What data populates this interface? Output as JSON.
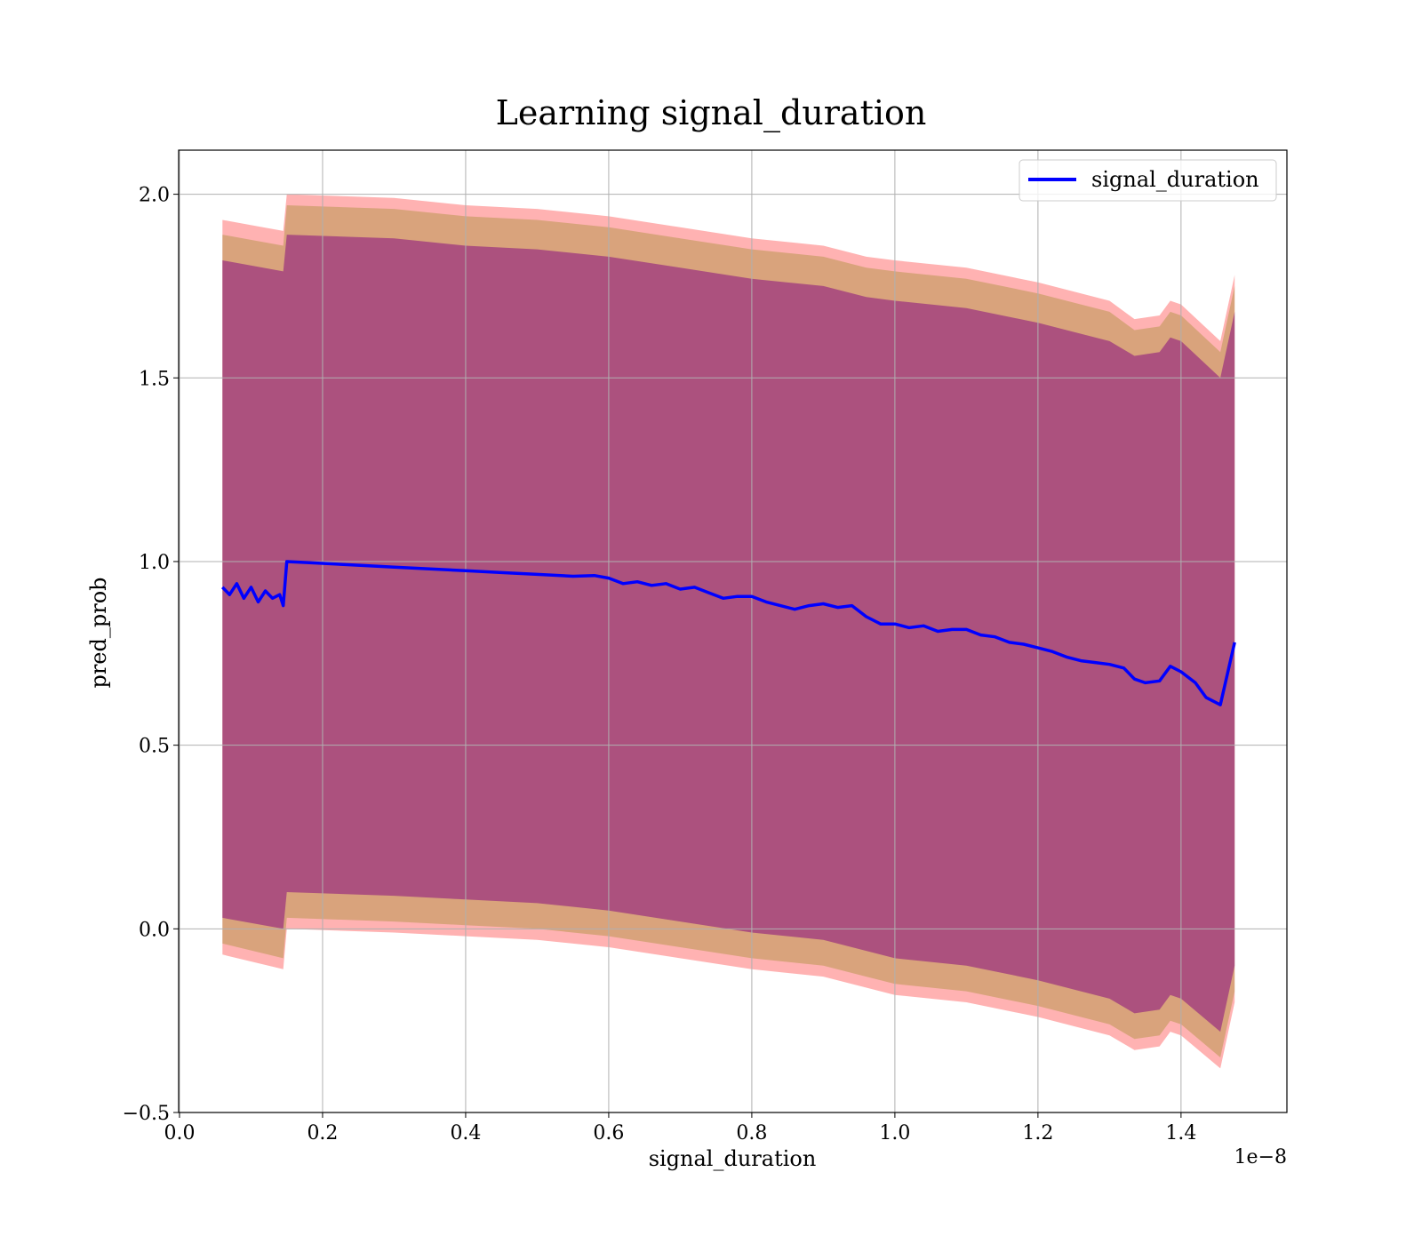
{
  "chart_data": {
    "type": "line",
    "title": "Learning signal_duration",
    "xlabel": "signal_duration",
    "ylabel": "pred_prob",
    "x_offset_label": "1e−8",
    "xlim": [
      -0.0012,
      1.548
    ],
    "ylim": [
      -0.5,
      2.12
    ],
    "x_ticks": [
      0.0,
      0.2,
      0.4,
      0.6,
      0.8,
      1.0,
      1.2,
      1.4
    ],
    "x_tick_labels": [
      "0.0",
      "0.2",
      "0.4",
      "0.6",
      "0.8",
      "1.0",
      "1.2",
      "1.4"
    ],
    "y_ticks": [
      -0.5,
      0.0,
      0.5,
      1.0,
      1.5,
      2.0
    ],
    "y_tick_labels": [
      "−0.5",
      "0.0",
      "0.5",
      "1.0",
      "1.5",
      "2.0"
    ],
    "grid": true,
    "legend_position": "upper-right",
    "colors": {
      "line": "#0000ff",
      "band_outer": "#ff0000",
      "band_middle": "#808000",
      "band_inner": "#800080",
      "grid": "#b0b0b0"
    },
    "series": [
      {
        "name": "signal_duration",
        "x": [
          0.06,
          0.07,
          0.08,
          0.09,
          0.1,
          0.11,
          0.12,
          0.13,
          0.14,
          0.145,
          0.15,
          0.2,
          0.25,
          0.3,
          0.35,
          0.4,
          0.45,
          0.5,
          0.55,
          0.58,
          0.6,
          0.62,
          0.64,
          0.66,
          0.68,
          0.7,
          0.72,
          0.74,
          0.76,
          0.78,
          0.8,
          0.82,
          0.84,
          0.86,
          0.88,
          0.9,
          0.92,
          0.94,
          0.96,
          0.98,
          1.0,
          1.02,
          1.04,
          1.06,
          1.08,
          1.1,
          1.12,
          1.14,
          1.16,
          1.18,
          1.2,
          1.22,
          1.24,
          1.26,
          1.28,
          1.3,
          1.32,
          1.335,
          1.35,
          1.37,
          1.385,
          1.4,
          1.42,
          1.435,
          1.455,
          1.475
        ],
        "y": [
          0.93,
          0.91,
          0.94,
          0.9,
          0.93,
          0.89,
          0.92,
          0.9,
          0.91,
          0.88,
          1.0,
          0.995,
          0.99,
          0.985,
          0.98,
          0.975,
          0.97,
          0.965,
          0.96,
          0.962,
          0.955,
          0.94,
          0.945,
          0.935,
          0.94,
          0.925,
          0.93,
          0.915,
          0.9,
          0.905,
          0.905,
          0.89,
          0.88,
          0.87,
          0.88,
          0.885,
          0.875,
          0.88,
          0.85,
          0.83,
          0.83,
          0.82,
          0.825,
          0.81,
          0.815,
          0.815,
          0.8,
          0.795,
          0.78,
          0.775,
          0.765,
          0.755,
          0.74,
          0.73,
          0.725,
          0.72,
          0.71,
          0.68,
          0.67,
          0.675,
          0.715,
          0.7,
          0.67,
          0.63,
          0.61,
          0.78
        ]
      }
    ],
    "bands": [
      {
        "name": "outer",
        "x": [
          0.06,
          0.145,
          0.15,
          0.3,
          0.4,
          0.5,
          0.6,
          0.7,
          0.8,
          0.9,
          0.96,
          1.0,
          1.1,
          1.2,
          1.3,
          1.335,
          1.37,
          1.385,
          1.4,
          1.455,
          1.475
        ],
        "upper": [
          1.93,
          1.9,
          2.0,
          1.99,
          1.97,
          1.96,
          1.94,
          1.91,
          1.88,
          1.86,
          1.83,
          1.82,
          1.8,
          1.76,
          1.71,
          1.66,
          1.67,
          1.71,
          1.7,
          1.6,
          1.78
        ],
        "lower": [
          -0.07,
          -0.11,
          0.0,
          -0.01,
          -0.02,
          -0.03,
          -0.05,
          -0.08,
          -0.11,
          -0.13,
          -0.16,
          -0.18,
          -0.2,
          -0.24,
          -0.29,
          -0.33,
          -0.32,
          -0.28,
          -0.29,
          -0.38,
          -0.2
        ]
      },
      {
        "name": "middle",
        "x": [
          0.06,
          0.145,
          0.15,
          0.3,
          0.4,
          0.5,
          0.6,
          0.7,
          0.8,
          0.9,
          0.96,
          1.0,
          1.1,
          1.2,
          1.3,
          1.335,
          1.37,
          1.385,
          1.4,
          1.455,
          1.475
        ],
        "upper": [
          1.89,
          1.86,
          1.97,
          1.96,
          1.94,
          1.93,
          1.91,
          1.88,
          1.85,
          1.83,
          1.8,
          1.79,
          1.77,
          1.73,
          1.68,
          1.63,
          1.64,
          1.68,
          1.67,
          1.57,
          1.75
        ],
        "lower": [
          -0.04,
          -0.08,
          0.03,
          0.02,
          0.01,
          0.0,
          -0.02,
          -0.05,
          -0.08,
          -0.1,
          -0.13,
          -0.15,
          -0.17,
          -0.21,
          -0.26,
          -0.3,
          -0.29,
          -0.25,
          -0.26,
          -0.35,
          -0.17
        ]
      },
      {
        "name": "inner",
        "x": [
          0.06,
          0.145,
          0.15,
          0.3,
          0.4,
          0.5,
          0.6,
          0.7,
          0.8,
          0.9,
          0.96,
          1.0,
          1.1,
          1.2,
          1.3,
          1.335,
          1.37,
          1.385,
          1.4,
          1.455,
          1.475
        ],
        "upper": [
          1.82,
          1.79,
          1.89,
          1.88,
          1.86,
          1.85,
          1.83,
          1.8,
          1.77,
          1.75,
          1.72,
          1.71,
          1.69,
          1.65,
          1.6,
          1.56,
          1.57,
          1.61,
          1.6,
          1.5,
          1.68
        ],
        "lower": [
          0.03,
          0.0,
          0.1,
          0.09,
          0.08,
          0.07,
          0.05,
          0.02,
          -0.01,
          -0.03,
          -0.06,
          -0.08,
          -0.1,
          -0.14,
          -0.19,
          -0.23,
          -0.22,
          -0.18,
          -0.19,
          -0.28,
          -0.1
        ]
      }
    ]
  }
}
